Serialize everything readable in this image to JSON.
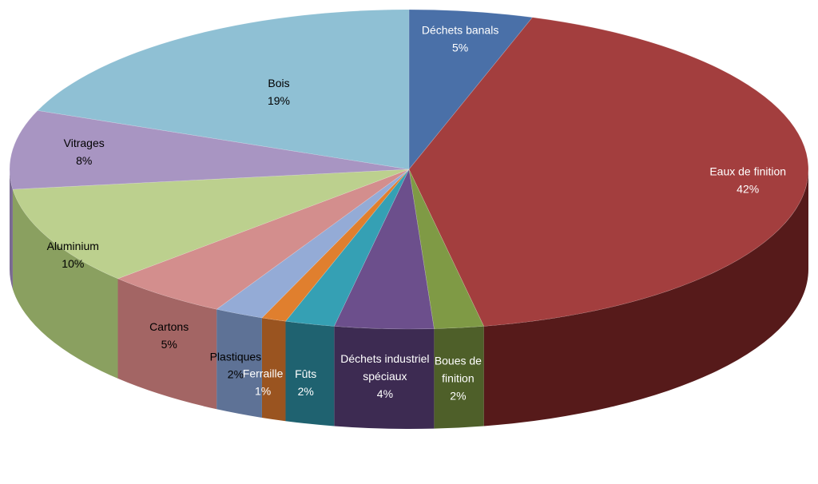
{
  "chart_data": {
    "type": "pie",
    "variant": "3d",
    "legend": "none",
    "slices": [
      {
        "label_lines": [
          "Déchets banals"
        ],
        "value_text": "5%",
        "value": 5,
        "top_color": "#4a70a8",
        "side_color": "#2b4366",
        "label_color": "#ffffff"
      },
      {
        "label_lines": [
          "Eaux de finition"
        ],
        "value_text": "42%",
        "value": 42,
        "top_color": "#a33e3e",
        "side_color": "#561a1a",
        "label_color": "#ffffff"
      },
      {
        "label_lines": [
          "Boues de",
          "finition"
        ],
        "value_text": "2%",
        "value": 2,
        "top_color": "#7f9a45",
        "side_color": "#4e5f29",
        "label_color": "#ffffff"
      },
      {
        "label_lines": [
          "Déchets industriel",
          "spéciaux"
        ],
        "value_text": "4%",
        "value": 4,
        "top_color": "#6c4f8c",
        "side_color": "#3d2b52",
        "label_color": "#ffffff"
      },
      {
        "label_lines": [
          "Fûts"
        ],
        "value_text": "2%",
        "value": 2,
        "top_color": "#35a0b4",
        "side_color": "#1f6270",
        "label_color": "#ffffff"
      },
      {
        "label_lines": [
          "Ferraille"
        ],
        "value_text": "1%",
        "value": 1,
        "top_color": "#e07f2e",
        "side_color": "#9a5420",
        "label_color": "#ffffff"
      },
      {
        "label_lines": [
          "Plastiques"
        ],
        "value_text": "2%",
        "value": 2,
        "top_color": "#94abd6",
        "side_color": "#5e7296",
        "label_color": "#000000"
      },
      {
        "label_lines": [
          "Cartons"
        ],
        "value_text": "5%",
        "value": 5,
        "top_color": "#d38e8d",
        "side_color": "#a36564",
        "label_color": "#000000"
      },
      {
        "label_lines": [
          "Aluminium"
        ],
        "value_text": "10%",
        "value": 10,
        "top_color": "#bcd08e",
        "side_color": "#8aa060",
        "label_color": "#000000"
      },
      {
        "label_lines": [
          "Vitrages"
        ],
        "value_text": "8%",
        "value": 8,
        "top_color": "#a895c2",
        "side_color": "#7a6a92",
        "label_color": "#000000"
      },
      {
        "label_lines": [
          "Bois"
        ],
        "value_text": "19%",
        "value": 19,
        "top_color": "#8fc0d4",
        "side_color": "#5f8fa3",
        "label_color": "#000000"
      }
    ]
  }
}
